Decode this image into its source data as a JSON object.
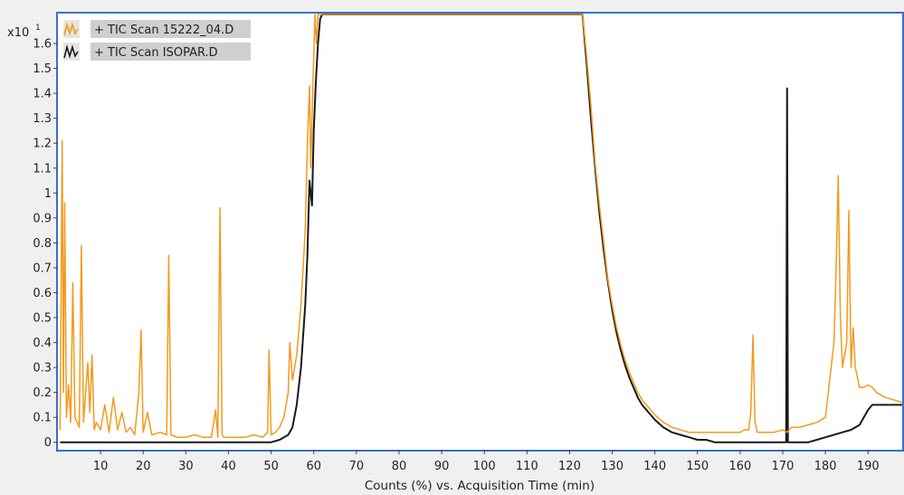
{
  "chart_data": {
    "type": "line",
    "y_multiplier_label": "x10",
    "y_multiplier_exp": "1",
    "xlabel": "Counts (%) vs. Acquisition Time (min)",
    "ylabel": "",
    "xlim": [
      0,
      198
    ],
    "ylim": [
      -0.03,
      1.72
    ],
    "x_ticks": [
      10,
      20,
      30,
      40,
      50,
      60,
      70,
      80,
      90,
      100,
      110,
      120,
      130,
      140,
      150,
      160,
      170,
      180,
      190
    ],
    "y_ticks": [
      0,
      0.1,
      0.2,
      0.3,
      0.4,
      0.5,
      0.6,
      0.7,
      0.8,
      0.9,
      1,
      1.1,
      1.2,
      1.3,
      1.4,
      1.5,
      1.6
    ],
    "y_tick_labels": [
      "0",
      "0.1",
      "0.2",
      "0.3",
      "0.4",
      "0.5",
      "0.6",
      "0.7",
      "0.8",
      "0.9",
      "1",
      "1.1",
      "1.2",
      "1.3",
      "1.4",
      "1.5",
      "1.6"
    ],
    "legend_position": "top-left",
    "series": [
      {
        "name": "+ TIC Scan 15222_04.D",
        "color": "#f39a1e",
        "x": [
          0.5,
          1,
          1.3,
          1.6,
          2,
          2.5,
          3,
          3.5,
          4,
          5,
          5.5,
          6,
          7,
          7.5,
          8,
          8.5,
          9,
          10,
          11,
          12,
          13,
          14,
          15,
          16,
          17,
          18,
          19,
          19.5,
          20,
          21,
          22,
          24,
          25.5,
          26,
          26.5,
          28,
          30,
          32,
          34,
          36,
          37,
          37.5,
          38,
          38.5,
          39,
          40,
          42,
          44,
          46,
          48,
          49.2,
          49.5,
          50,
          51,
          52,
          53,
          54,
          54.4,
          55,
          56,
          57,
          58,
          58.5,
          59,
          59.3,
          59.6,
          60,
          60.3,
          60.6,
          61,
          61.5,
          62,
          123,
          124,
          125,
          126,
          127,
          128,
          129,
          130,
          131,
          132,
          133,
          134,
          135,
          136,
          137,
          138,
          139,
          140,
          142,
          144,
          146,
          148,
          150,
          152,
          154,
          156,
          158,
          160,
          161,
          162,
          162.5,
          163,
          163.5,
          164,
          166,
          168,
          170,
          171,
          172,
          174,
          176,
          178,
          180,
          181,
          182,
          182.5,
          183,
          183.5,
          184,
          185,
          185.5,
          186,
          186.5,
          187,
          188,
          189,
          190,
          191,
          192,
          194,
          196,
          198
        ],
        "y": [
          0.05,
          1.21,
          0.2,
          0.96,
          0.1,
          0.23,
          0.08,
          0.64,
          0.1,
          0.06,
          0.79,
          0.08,
          0.32,
          0.12,
          0.35,
          0.05,
          0.08,
          0.05,
          0.15,
          0.04,
          0.18,
          0.05,
          0.12,
          0.04,
          0.06,
          0.03,
          0.2,
          0.45,
          0.04,
          0.12,
          0.03,
          0.04,
          0.03,
          0.75,
          0.03,
          0.02,
          0.02,
          0.03,
          0.02,
          0.02,
          0.13,
          0.02,
          0.94,
          0.03,
          0.02,
          0.02,
          0.02,
          0.02,
          0.03,
          0.02,
          0.04,
          0.37,
          0.03,
          0.04,
          0.06,
          0.1,
          0.2,
          0.4,
          0.25,
          0.35,
          0.55,
          0.85,
          1.2,
          1.43,
          1.1,
          1.3,
          1.55,
          1.75,
          1.6,
          1.75,
          1.72,
          1.75,
          1.72,
          1.55,
          1.35,
          1.12,
          0.95,
          0.8,
          0.65,
          0.55,
          0.46,
          0.39,
          0.33,
          0.28,
          0.24,
          0.2,
          0.17,
          0.15,
          0.13,
          0.11,
          0.08,
          0.06,
          0.05,
          0.04,
          0.04,
          0.04,
          0.04,
          0.04,
          0.04,
          0.04,
          0.05,
          0.05,
          0.12,
          0.43,
          0.08,
          0.04,
          0.04,
          0.04,
          0.05,
          0.04,
          0.06,
          0.06,
          0.07,
          0.08,
          0.1,
          0.25,
          0.4,
          0.7,
          1.07,
          0.5,
          0.3,
          0.4,
          0.93,
          0.3,
          0.46,
          0.3,
          0.22,
          0.22,
          0.23,
          0.22,
          0.2,
          0.18,
          0.17,
          0.16
        ],
        "values_precision": "approximate"
      },
      {
        "name": "+ TIC Scan ISOPAR.D",
        "color": "#1a1a1a",
        "x": [
          0.5,
          10,
          20,
          30,
          40,
          46,
          50,
          52,
          54,
          55,
          56,
          57,
          58,
          58.5,
          59,
          59.3,
          59.6,
          60,
          60.5,
          61,
          61.5,
          62,
          123,
          124,
          125,
          126,
          127,
          128,
          129,
          130,
          131,
          132,
          133,
          134,
          135,
          136,
          137,
          138,
          139,
          140,
          142,
          144,
          146,
          148,
          150,
          152,
          154,
          156,
          158,
          160,
          162,
          164,
          166,
          168,
          170,
          170.8,
          171,
          171.2,
          172,
          174,
          176,
          178,
          180,
          182,
          184,
          186,
          188,
          189,
          190,
          191,
          192,
          194,
          196,
          198
        ],
        "y": [
          0.0,
          0.0,
          0.0,
          0.0,
          0.0,
          0.0,
          0.0,
          0.01,
          0.03,
          0.06,
          0.15,
          0.3,
          0.55,
          0.75,
          1.05,
          1.0,
          0.95,
          1.25,
          1.45,
          1.6,
          1.7,
          1.75,
          1.72,
          1.52,
          1.3,
          1.1,
          0.92,
          0.77,
          0.64,
          0.53,
          0.44,
          0.37,
          0.31,
          0.26,
          0.22,
          0.18,
          0.15,
          0.13,
          0.11,
          0.09,
          0.06,
          0.04,
          0.03,
          0.02,
          0.01,
          0.01,
          0.0,
          0.0,
          0.0,
          0.0,
          0.0,
          0.0,
          0.0,
          0.0,
          0.0,
          0.0,
          1.42,
          0.0,
          0.0,
          0.0,
          0.0,
          0.01,
          0.02,
          0.03,
          0.04,
          0.05,
          0.07,
          0.1,
          0.13,
          0.15,
          0.15,
          0.15,
          0.15,
          0.15
        ],
        "values_precision": "approximate"
      }
    ]
  }
}
